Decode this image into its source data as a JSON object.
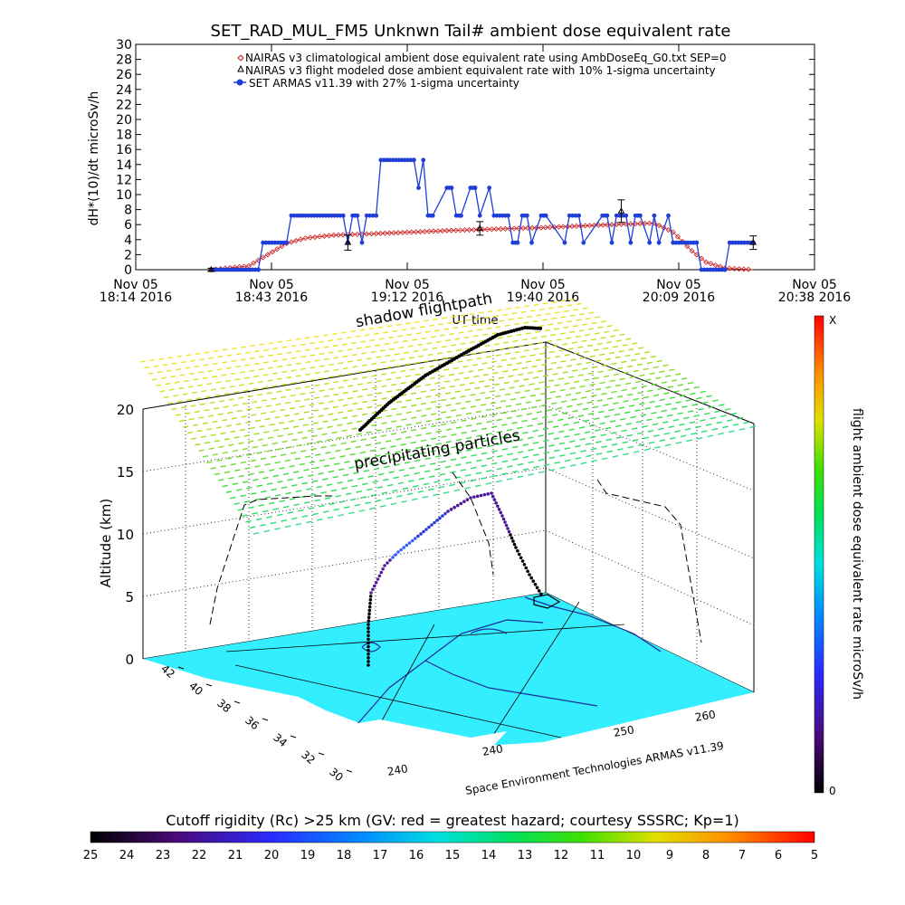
{
  "title": "SET_RAD_MUL_FM5 Unknwn Tail#  ambient dose equivalent rate",
  "chart_data": [
    {
      "type": "line",
      "ylabel": "dH*(10)/dt microSv/h",
      "xlabel": "UT time",
      "ylim": [
        0,
        30
      ],
      "yticks": [
        "0",
        "2",
        "4",
        "6",
        "8",
        "10",
        "12",
        "14",
        "16",
        "18",
        "20",
        "22",
        "24",
        "26",
        "28",
        "30"
      ],
      "xticks": [
        {
          "date": "Nov 05",
          "time": "18:14 2016"
        },
        {
          "date": "Nov 05",
          "time": "18:43 2016"
        },
        {
          "date": "Nov 05",
          "time": "19:12 2016"
        },
        {
          "date": "Nov 05",
          "time": "19:40 2016"
        },
        {
          "date": "Nov 05",
          "time": "20:09 2016"
        },
        {
          "date": "Nov 05",
          "time": "20:38 2016"
        }
      ],
      "legend": [
        {
          "label": "NAIRAS v3 climatological ambient dose equivalent rate using AmbDoseEq_G0.txt SEP=0",
          "color": "#cc2222",
          "marker": "diamond"
        },
        {
          "label": "NAIRAS v3 flight modeled dose ambient equivalent rate with 10% 1-sigma uncertainty",
          "color": "#000000",
          "marker": "triangle"
        },
        {
          "label": "SET ARMAS v11.39 with 27% 1-sigma uncertainty",
          "color": "#1f3fd8",
          "marker": "dot"
        }
      ],
      "series": [
        {
          "name": "SET ARMAS v11.39 with 27% 1-sigma uncertainty",
          "color": "#1f3fd8",
          "x": [
            "18:30",
            "18:40",
            "18:41",
            "18:46",
            "18:47",
            "18:58",
            "18:59",
            "19:00",
            "19:01",
            "19:02",
            "19:03",
            "19:05",
            "19:06",
            "19:13",
            "19:14",
            "19:15",
            "19:16",
            "19:17",
            "19:20",
            "19:21",
            "19:22",
            "19:23",
            "19:25",
            "19:26",
            "19:27",
            "19:29",
            "19:30",
            "19:33",
            "19:34",
            "19:35",
            "19:36",
            "19:37",
            "19:38",
            "19:40",
            "19:41",
            "19:45",
            "19:46",
            "19:48",
            "19:49",
            "19:53",
            "19:54",
            "19:55",
            "19:56",
            "19:58",
            "19:59",
            "20:00",
            "20:01",
            "20:03",
            "20:04",
            "20:05",
            "20:07",
            "20:08",
            "20:13",
            "20:14",
            "20:19",
            "20:20",
            "20:25"
          ],
          "y": [
            0,
            0,
            3.6,
            3.6,
            7.2,
            7.2,
            3.6,
            7.2,
            7.2,
            3.6,
            7.2,
            7.2,
            14.6,
            14.6,
            10.9,
            14.6,
            7.2,
            7.2,
            10.9,
            10.9,
            7.2,
            7.2,
            10.9,
            10.9,
            7.2,
            10.9,
            7.2,
            7.2,
            3.6,
            3.6,
            7.2,
            7.2,
            3.6,
            7.2,
            7.2,
            3.6,
            7.2,
            7.2,
            3.6,
            7.2,
            7.2,
            3.6,
            7.2,
            7.2,
            3.6,
            7.2,
            7.2,
            3.6,
            7.2,
            3.6,
            7.2,
            3.6,
            3.6,
            0,
            0,
            3.6,
            3.6
          ]
        },
        {
          "name": "NAIRAS v3 climatological ambient dose equivalent rate using AmbDoseEq_G0.txt SEP=0",
          "color": "#cc2222",
          "x": [
            "18:30",
            "18:38",
            "18:42",
            "18:46",
            "18:50",
            "18:56",
            "19:05",
            "19:20",
            "19:40",
            "19:55",
            "20:04",
            "20:08",
            "20:12",
            "20:15",
            "20:19",
            "20:25"
          ],
          "y": [
            0,
            0.5,
            2,
            3.5,
            4.2,
            4.6,
            4.8,
            5.2,
            5.6,
            6,
            6.2,
            5,
            2.5,
            1,
            0.2,
            0
          ]
        },
        {
          "name": "NAIRAS v3 flight modeled dose ambient equivalent rate with 10% 1-sigma uncertainty",
          "color": "#000000",
          "x": [
            "18:30",
            "18:59",
            "19:27",
            "19:57",
            "20:25"
          ],
          "y": [
            0,
            3.6,
            5.5,
            7.8,
            3.6
          ],
          "err": [
            0.2,
            1,
            0.9,
            1.5,
            0.9
          ]
        }
      ]
    },
    {
      "type": "scatter",
      "ylabel": "Altitude (km)",
      "zticks": [
        "0",
        "5",
        "10",
        "15",
        "20"
      ],
      "lat_ticks": [
        "42",
        "40",
        "38",
        "36",
        "34",
        "32",
        "30"
      ],
      "lon_ticks": [
        "240",
        "240",
        "250",
        "260"
      ],
      "annotations": [
        "shadow flightpath",
        "precipitating particles"
      ],
      "footer": "Space Environment Technologies ARMAS v11.39",
      "colorbar": {
        "label": "flight ambient dose equivalent rate microSv/h",
        "top": "X",
        "bottom": "0"
      }
    }
  ],
  "colorbar_bottom": {
    "label": "Cutoff rigidity (Rc) >25 km (GV: red = greatest hazard; courtesy SSSRC; Kp=1)",
    "ticks": [
      "25",
      "24",
      "23",
      "22",
      "21",
      "20",
      "19",
      "18",
      "17",
      "16",
      "15",
      "14",
      "13",
      "12",
      "11",
      "10",
      "9",
      "8",
      "7",
      "6",
      "5"
    ]
  }
}
